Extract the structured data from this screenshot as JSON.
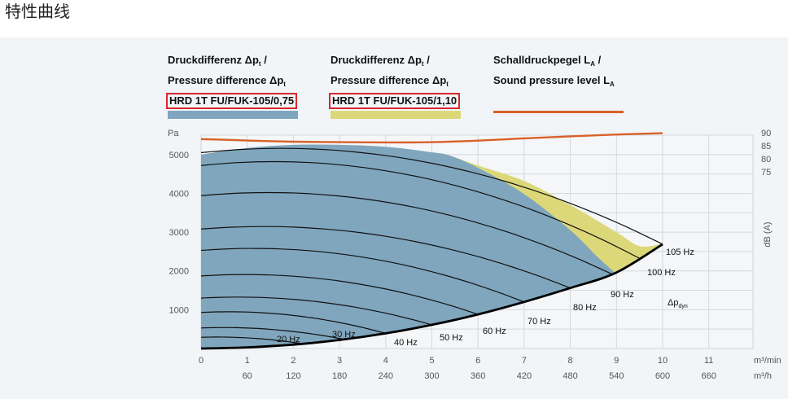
{
  "page_title": "特性曲线",
  "legend": {
    "item1": {
      "line1_prefix": "Druckdifferenz Δp",
      "line1_sub": "t",
      "line1_suffix": " /",
      "line2_prefix": "Pressure difference Δp",
      "line2_sub": "t",
      "model": "HRD 1T FU/FUK-105/0,75",
      "color": "#7fa6bd"
    },
    "item2": {
      "line1_prefix": "Druckdifferenz Δp",
      "line1_sub": "t",
      "line1_suffix": " /",
      "line2_prefix": "Pressure difference Δp",
      "line2_sub": "t",
      "model": "HRD 1T FU/FUK-105/1,10",
      "color": "#dcd87a"
    },
    "item3": {
      "line1_prefix": "Schalldruckpegel L",
      "line1_sub": "A",
      "line1_suffix": " /",
      "line2_prefix": "Sound pressure level L",
      "line2_sub": "A",
      "color": "#d9602a"
    }
  },
  "chart_data": {
    "type": "line",
    "title": "",
    "y_unit_label": "Pa",
    "ylim": [
      0,
      5500
    ],
    "y_ticks": [
      1000,
      2000,
      3000,
      4000,
      5000
    ],
    "xlim": [
      0,
      12
    ],
    "x_ticks_primary": [
      "0",
      "1",
      "2",
      "3",
      "4",
      "5",
      "6",
      "7",
      "8",
      "9",
      "10",
      "11"
    ],
    "x_unit_primary": "m³/min",
    "x_ticks_secondary": [
      "60",
      "120",
      "180",
      "240",
      "300",
      "360",
      "420",
      "480",
      "540",
      "600",
      "660"
    ],
    "x_unit_secondary": "m³/h",
    "y2_label": "dB (A)",
    "y2_ticks": [
      "90",
      "85",
      "80",
      "75"
    ],
    "grid": true,
    "dyn_label_prefix": "Δp",
    "dyn_label_sub": "dyn",
    "series": [
      {
        "name": "HRD 1T FU/FUK-105/0,75",
        "x": [
          0,
          1,
          2,
          3,
          4,
          5,
          5.4,
          6,
          7,
          8,
          8.6,
          9
        ],
        "y": [
          5000,
          5170,
          5250,
          5250,
          5200,
          5060,
          4970,
          4660,
          3980,
          3050,
          2350,
          1920
        ]
      },
      {
        "name": "HRD 1T FU/FUK-105/1,10",
        "x": [
          5.4,
          6,
          7,
          8,
          9,
          9.5,
          10
        ],
        "y": [
          4970,
          4720,
          4320,
          3700,
          3000,
          2640,
          2700
        ]
      },
      {
        "name": "Schalldruckpegel LA / Sound pressure level LA",
        "unit": "dB (A)",
        "x": [
          0,
          2,
          4,
          5,
          6,
          7,
          8,
          9,
          10
        ],
        "y": [
          87.5,
          86.5,
          86.2,
          86.3,
          86.9,
          87.8,
          88.6,
          89.3,
          89.8
        ]
      },
      {
        "name": "Δp dyn",
        "x": [
          0,
          1,
          2,
          3,
          4,
          5,
          6,
          7,
          8,
          9,
          10
        ],
        "y": [
          0,
          30,
          100,
          220,
          390,
          610,
          880,
          1200,
          1560,
          1960,
          2690
        ]
      }
    ],
    "hz_curves": [
      {
        "label": "20 Hz",
        "max_y": 290,
        "end_x": 2.2
      },
      {
        "label": "30 Hz",
        "max_y": 530,
        "end_x": 3.1
      },
      {
        "label": "40 Hz",
        "max_y": 930,
        "end_x": 4.0
      },
      {
        "label": "50 Hz",
        "max_y": 1300,
        "end_x": 5.0
      },
      {
        "label": "60 Hz",
        "max_y": 1870,
        "end_x": 6.0
      },
      {
        "label": "70 Hz",
        "max_y": 2530,
        "end_x": 7.0
      },
      {
        "label": "80 Hz",
        "max_y": 3080,
        "end_x": 8.0
      },
      {
        "label": "90 Hz",
        "max_y": 3940,
        "end_x": 8.9
      },
      {
        "label": "100 Hz",
        "max_y": 4720,
        "end_x": 9.5
      },
      {
        "label": "105 Hz",
        "max_y": 5050,
        "end_x": 10.0
      }
    ]
  }
}
